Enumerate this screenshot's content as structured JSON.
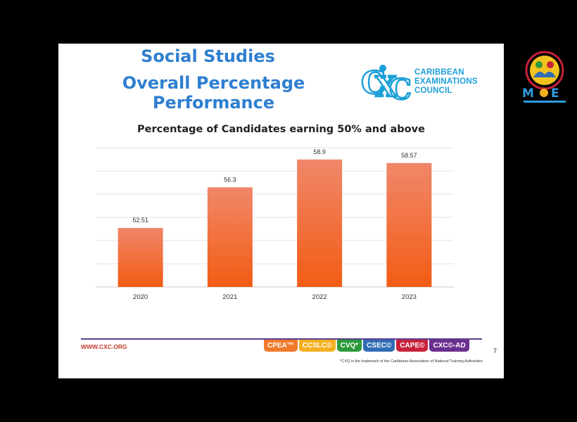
{
  "slide": {
    "title_line1": "Social Studies",
    "title_line2": "Overall Percentage Performance",
    "council_line1": "CARIBBEAN",
    "council_line2": "EXAMINATIONS",
    "council_line3": "COUNCIL",
    "url": "WWW.CXC.ORG",
    "page_number": "7",
    "footnote": "*CVQ is the trademark of the Caribbean Association of National Training Authorities",
    "badges": [
      {
        "label": "CPEA™",
        "color": "#f07a2a"
      },
      {
        "label": "CCSLC©",
        "color": "#f2b01e"
      },
      {
        "label": "CVQ*",
        "color": "#2c9a3a"
      },
      {
        "label": "CSEC©",
        "color": "#2f6db5"
      },
      {
        "label": "CAPE©",
        "color": "#c8213a"
      },
      {
        "label": "CXC©-AD",
        "color": "#6a2f8e"
      }
    ]
  },
  "chart_data": {
    "type": "bar",
    "title": "Percentage of Candidates earning 50% and above",
    "categories": [
      "2020",
      "2021",
      "2022",
      "2023"
    ],
    "values": [
      52.51,
      56.3,
      58.9,
      58.57
    ],
    "value_labels": [
      "52.51",
      "56.3",
      "58.9",
      "58.57"
    ],
    "ylim": [
      47,
      60
    ],
    "grid": true,
    "bar_color_top": "#f0876a",
    "bar_color_bottom": "#f25c14"
  },
  "colors": {
    "title": "#2f7fd0",
    "cxc": "#1b9fd8"
  }
}
